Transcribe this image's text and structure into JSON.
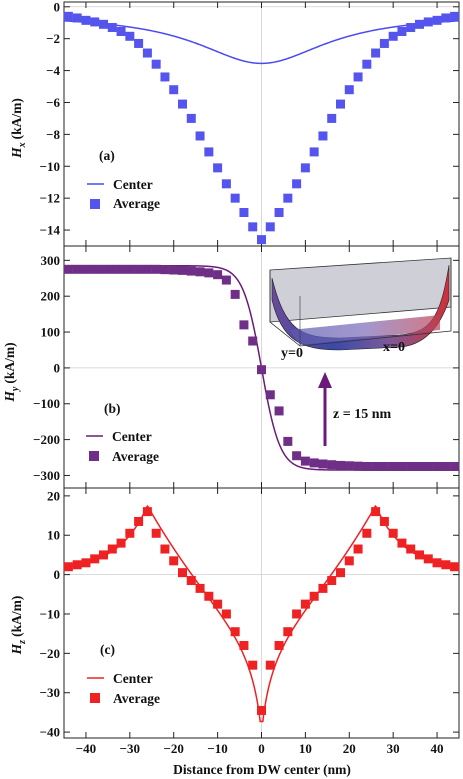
{
  "colors": {
    "hx": "#4a4af0",
    "hy": "#6a1b7a",
    "hz": "#ee2222",
    "hx_marker": "#5555ee",
    "hy_marker": "#6f2f86",
    "hz_marker": "#ee2222"
  },
  "chart_data": [
    {
      "type": "scatter",
      "panel_label": "(a)",
      "ylabel_main": "H",
      "ylabel_sub": "x",
      "ylabel_unit": "(kA/m)",
      "xlim": [
        -45,
        45
      ],
      "ylim": [
        -15,
        0.3
      ],
      "yticks": [
        0,
        -2,
        -4,
        -6,
        -8,
        -10,
        -12,
        -14
      ],
      "legend": {
        "position": "lower-left",
        "entries": [
          "Center",
          "Average"
        ]
      },
      "series": [
        {
          "name": "Center",
          "style": "line",
          "color_key": "hx",
          "model": "hx_center",
          "x": [
            -45,
            -40,
            -35,
            -30,
            -25,
            -20,
            -15,
            -10,
            -5,
            0,
            5,
            10,
            15,
            20,
            25,
            30,
            35,
            40,
            45
          ],
          "y": [
            -0.8,
            -1.0,
            -1.3,
            -1.6,
            -2.0,
            -2.45,
            -2.9,
            -3.25,
            -3.48,
            -3.55,
            -3.48,
            -3.25,
            -2.9,
            -2.45,
            -2.0,
            -1.6,
            -1.3,
            -1.0,
            -0.8
          ]
        },
        {
          "name": "Average",
          "style": "markers",
          "color_key": "hx_marker",
          "x": [
            -44,
            -42,
            -40,
            -38,
            -36,
            -34,
            -32,
            -30,
            -28,
            -26,
            -24,
            -22,
            -20,
            -18,
            -16,
            -14,
            -12,
            -10,
            -8,
            -6,
            -4,
            -2,
            0,
            2,
            4,
            6,
            8,
            10,
            12,
            14,
            16,
            18,
            20,
            22,
            24,
            26,
            28,
            30,
            32,
            34,
            36,
            38,
            40,
            42,
            44
          ],
          "y": [
            -0.6,
            -0.7,
            -0.85,
            -0.95,
            -1.1,
            -1.3,
            -1.55,
            -1.85,
            -2.3,
            -2.9,
            -3.6,
            -4.4,
            -5.2,
            -6.1,
            -7.0,
            -8.1,
            -9.1,
            -10.1,
            -11.1,
            -12.0,
            -12.9,
            -13.8,
            -14.6,
            -13.8,
            -12.9,
            -12.0,
            -11.1,
            -10.1,
            -9.1,
            -8.1,
            -7.0,
            -6.1,
            -5.2,
            -4.4,
            -3.6,
            -2.9,
            -2.3,
            -1.85,
            -1.55,
            -1.3,
            -1.1,
            -0.95,
            -0.85,
            -0.7,
            -0.6
          ]
        }
      ]
    },
    {
      "type": "scatter",
      "panel_label": "(b)",
      "ylabel_main": "H",
      "ylabel_sub": "y",
      "ylabel_unit": "(kA/m)",
      "xlim": [
        -45,
        45
      ],
      "ylim": [
        -335,
        340
      ],
      "yticks": [
        300,
        200,
        100,
        0,
        -100,
        -200,
        -300
      ],
      "legend": {
        "position": "lower-left",
        "entries": [
          "Center",
          "Average"
        ]
      },
      "annotation": "z = 15 nm",
      "inset_labels": {
        "left": "y=0",
        "right": "x=0"
      },
      "series": [
        {
          "name": "Center",
          "style": "line",
          "color_key": "hy",
          "model": "hy_center",
          "x": [
            -45,
            -30,
            -20,
            -10,
            -6,
            -4,
            -2,
            0,
            2,
            4,
            6,
            10,
            20,
            30,
            45
          ],
          "y": [
            285,
            285,
            282,
            262,
            205,
            140,
            70,
            0,
            -70,
            -140,
            -205,
            -262,
            -282,
            -285,
            -285
          ]
        },
        {
          "name": "Average",
          "style": "markers",
          "color_key": "hy_marker",
          "x": [
            -44,
            -42,
            -40,
            -38,
            -36,
            -34,
            -32,
            -30,
            -28,
            -26,
            -24,
            -22,
            -20,
            -18,
            -16,
            -14,
            -12,
            -10,
            -8,
            -6,
            -4,
            -2,
            0,
            2,
            4,
            6,
            8,
            10,
            12,
            14,
            16,
            18,
            20,
            22,
            24,
            26,
            28,
            30,
            32,
            34,
            36,
            38,
            40,
            42,
            44
          ],
          "y": [
            275,
            275,
            275,
            275,
            275,
            275,
            275,
            275,
            275,
            275,
            275,
            274,
            273,
            272,
            270,
            268,
            265,
            260,
            245,
            205,
            120,
            75,
            -5,
            -75,
            -120,
            -205,
            -245,
            -260,
            -265,
            -268,
            -270,
            -272,
            -273,
            -274,
            -275,
            -275,
            -275,
            -275,
            -275,
            -275,
            -275,
            -275,
            -275,
            -275,
            -275
          ]
        }
      ]
    },
    {
      "type": "scatter",
      "panel_label": "(c)",
      "ylabel_main": "H",
      "ylabel_sub": "z",
      "ylabel_unit": "(kA/m)",
      "xlabel": "Distance from DW center (nm)",
      "xlim": [
        -45,
        45
      ],
      "ylim": [
        -41.5,
        22
      ],
      "xticks": [
        -40,
        -30,
        -20,
        -10,
        0,
        10,
        20,
        30,
        40
      ],
      "yticks": [
        20,
        10,
        0,
        -10,
        -20,
        -30,
        -40
      ],
      "legend": {
        "position": "lower-left",
        "entries": [
          "Center",
          "Average"
        ]
      },
      "series": [
        {
          "name": "Center",
          "style": "line",
          "color_key": "hz",
          "model": "hz_center",
          "x": [
            -45,
            -40,
            -35,
            -30,
            -27,
            -26,
            -25,
            -22,
            -20,
            -15,
            -10,
            -5,
            -2,
            -1,
            0,
            1,
            2,
            5,
            10,
            15,
            20,
            22,
            25,
            26,
            27,
            30,
            35,
            40,
            45
          ],
          "y": [
            1.5,
            3.0,
            5.5,
            10.5,
            15.5,
            17.5,
            12.5,
            5.5,
            2.5,
            -3.5,
            -9.5,
            -17.5,
            -26.0,
            -31.0,
            -40.5,
            -31.0,
            -26.0,
            -17.5,
            -9.5,
            -3.5,
            2.5,
            5.5,
            12.5,
            17.5,
            15.5,
            10.5,
            5.5,
            3.0,
            1.5
          ]
        },
        {
          "name": "Average",
          "style": "markers",
          "color_key": "hz_marker",
          "x": [
            -44,
            -42,
            -40,
            -38,
            -36,
            -34,
            -32,
            -30,
            -28,
            -26,
            -24,
            -22,
            -20,
            -18,
            -16,
            -14,
            -12,
            -10,
            -8,
            -6,
            -4,
            -2,
            0,
            2,
            4,
            6,
            8,
            10,
            12,
            14,
            16,
            18,
            20,
            22,
            24,
            26,
            28,
            30,
            32,
            34,
            36,
            38,
            40,
            42,
            44
          ],
          "y": [
            2.0,
            2.5,
            3.0,
            4.0,
            5.0,
            6.5,
            8.0,
            10.5,
            13.5,
            16.0,
            10.5,
            6.5,
            3.5,
            0.5,
            -1.5,
            -3.5,
            -5.5,
            -7.5,
            -10.0,
            -14.5,
            -18.0,
            -23.0,
            -34.5,
            -23.0,
            -18.0,
            -14.5,
            -10.0,
            -7.5,
            -5.5,
            -3.5,
            -1.5,
            0.5,
            3.5,
            6.5,
            10.5,
            16.0,
            13.5,
            10.5,
            8.0,
            6.5,
            5.0,
            4.0,
            3.0,
            2.5,
            2.0
          ]
        }
      ]
    }
  ]
}
